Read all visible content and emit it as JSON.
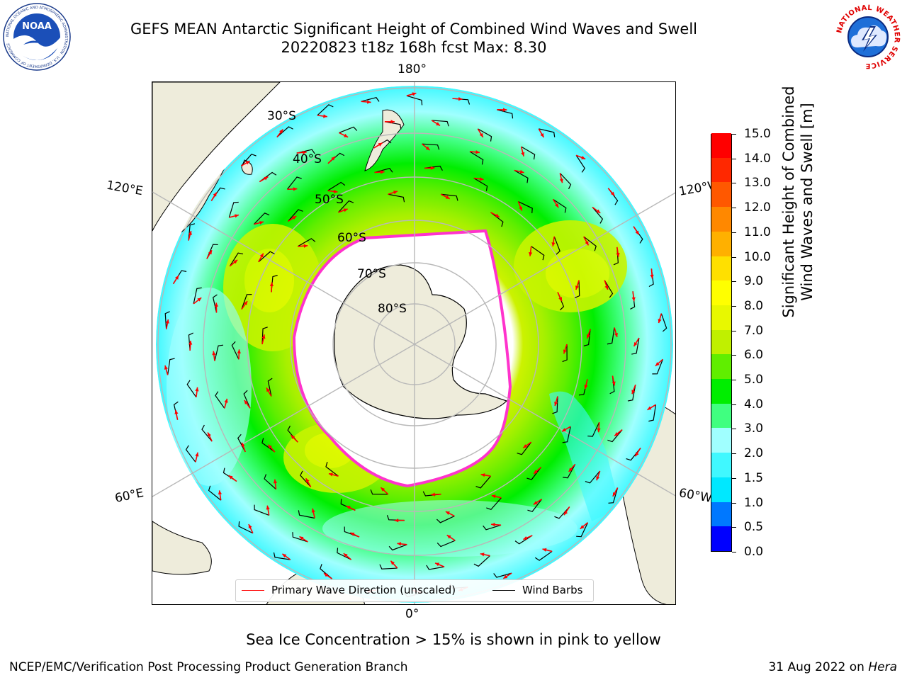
{
  "title": {
    "line1": "GEFS MEAN Antarctic Significant Height of Combined Wind Waves and Swell",
    "line2": "20220823 t18z 168h fcst   Max: 8.30"
  },
  "logos": {
    "left_name": "NOAA",
    "left_ring_text": "NATIONAL OCEANIC AND ATMOSPHERIC ADMINISTRATION · U.S. DEPARTMENT OF COMMERCE",
    "right_ring_text": "NATIONAL WEATHER SERVICE"
  },
  "map": {
    "projection": "south-polar-stereographic",
    "longitude_labels": {
      "top": "180°",
      "bottom": "0°",
      "upper_left": "120°E",
      "upper_right": "120°W",
      "lower_left": "60°E",
      "lower_right": "60°W"
    },
    "latitude_labels": [
      "30°S",
      "40°S",
      "50°S",
      "60°S",
      "70°S",
      "80°S"
    ],
    "colors": {
      "land": "#eeecdb",
      "ice_edge": "#ff33cc",
      "arrow": "#ff0000",
      "barb": "#000000",
      "grid": "#b8b8b8"
    }
  },
  "legend": {
    "wave_direction": "Primary Wave Direction (unscaled)",
    "wind_barbs": "Wind Barbs",
    "wave_color": "#ff0000",
    "barb_color": "#000000"
  },
  "colorbar": {
    "title_line1": "Significant Height of Combined",
    "title_line2": "Wind Waves and Swell [m]",
    "ticks": [
      "0.0",
      "0.5",
      "1.0",
      "1.5",
      "2.0",
      "3.0",
      "4.0",
      "5.0",
      "6.0",
      "7.0",
      "8.0",
      "9.0",
      "10.0",
      "11.0",
      "12.0",
      "13.0",
      "14.0",
      "15.0"
    ],
    "colors": [
      "#0000ff",
      "#0078ff",
      "#00e8ff",
      "#40f8ff",
      "#a0ffff",
      "#40ff80",
      "#00ee00",
      "#60ee00",
      "#c0f000",
      "#e8f800",
      "#ffff00",
      "#ffe000",
      "#ffb000",
      "#ff8800",
      "#ff5800",
      "#ff2800",
      "#ff0000"
    ]
  },
  "footnote": "Sea Ice Concentration > 15% is shown in pink to yellow",
  "credits": {
    "left": "NCEP/EMC/Verification Post Processing Product Generation Branch",
    "right_date": "31 Aug 2022 on",
    "right_host": "Hera"
  }
}
